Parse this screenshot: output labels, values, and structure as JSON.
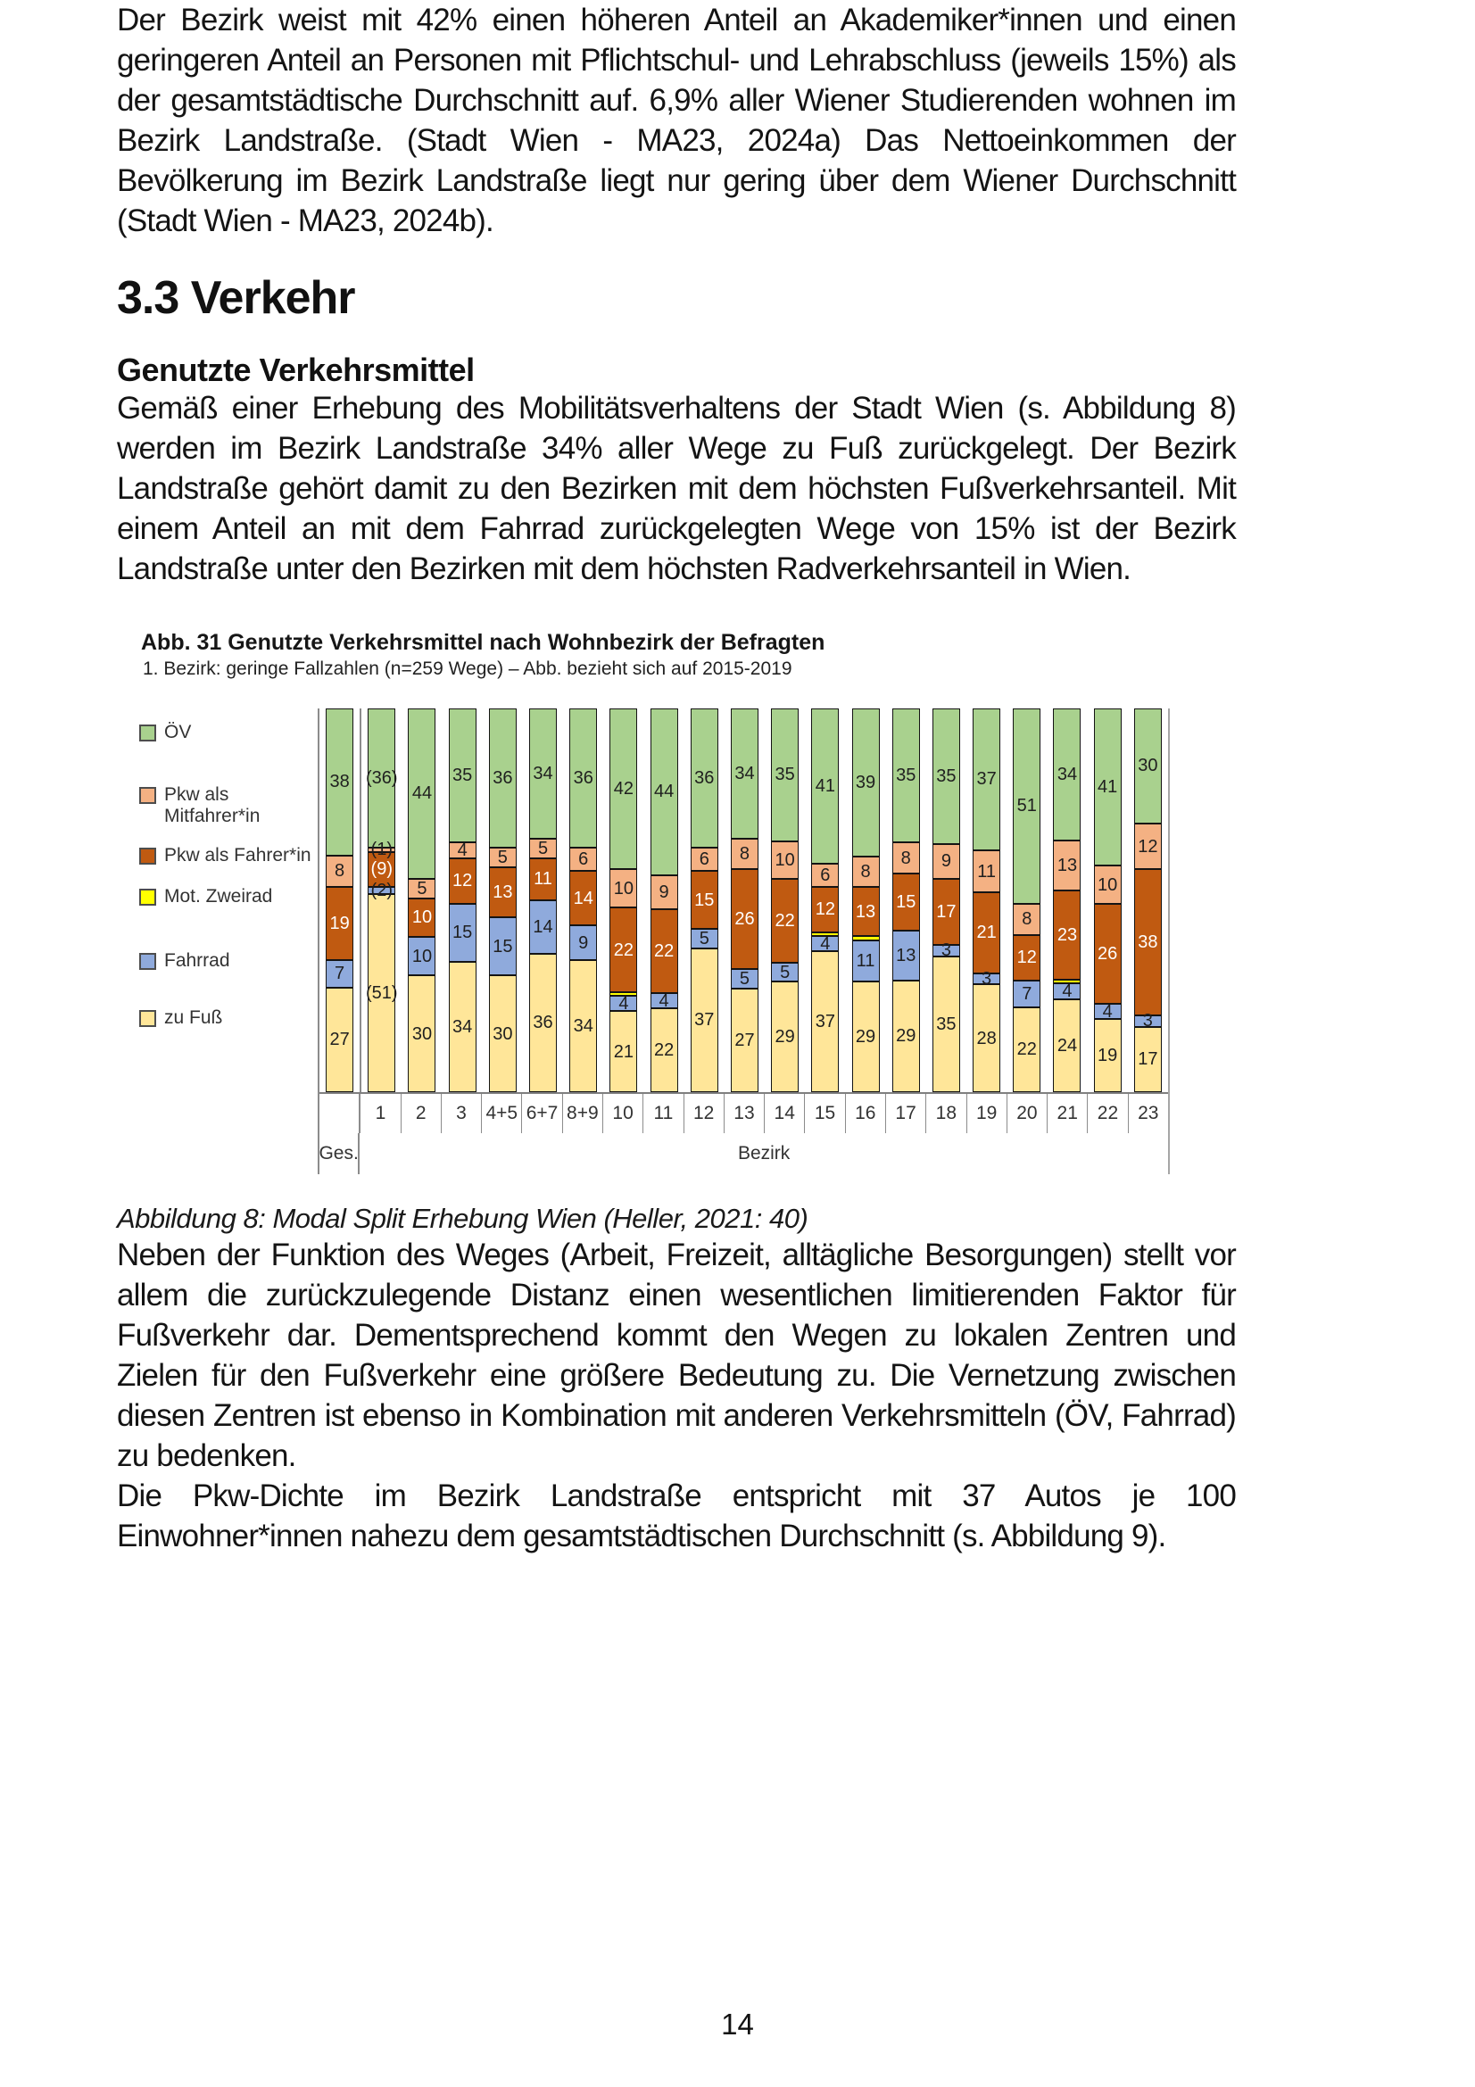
{
  "headings": {
    "section": "3.3 Verkehr",
    "subsection": "Genutzte Verkehrsmittel"
  },
  "paragraphs": {
    "p1": "Der Bezirk weist mit 42% einen höheren Anteil an Akademiker*innen und einen geringeren Anteil an Personen mit Pflichtschul- und Lehrabschluss (jeweils 15%) als der gesamtstädtische Durchschnitt auf. 6,9% aller Wiener Studierenden wohnen im Bezirk Landstraße. (Stadt Wien - MA23, 2024a) Das Nettoeinkommen der Bevölkerung im Bezirk Landstraße liegt nur gering über dem Wiener Durchschnitt (Stadt Wien - MA23, 2024b).",
    "p2": "Gemäß einer Erhebung des Mobilitätsverhaltens der Stadt Wien (s. Abbildung 8) werden im Bezirk Landstraße 34% aller Wege zu Fuß zurückgelegt. Der Bezirk Landstraße gehört damit zu den Bezirken mit dem höchsten Fußverkehrsanteil. Mit einem Anteil an mit dem Fahrrad zurückgelegten Wege von 15% ist der Bezirk Landstraße unter den Bezirken mit dem höchsten Radverkehrsanteil in Wien.",
    "p3": "Neben der Funktion des Weges (Arbeit, Freizeit, alltägliche Besorgungen) stellt vor allem die zurückzulegende Distanz einen wesentlichen limitierenden Faktor für Fußverkehr dar. Dementsprechend kommt den Wegen zu lokalen Zentren und Zielen für den Fußverkehr eine größere Bedeutung zu. Die Vernetzung zwischen diesen Zentren ist ebenso in Kombination mit anderen Verkehrsmitteln (ÖV, Fahrrad) zu bedenken.",
    "p4": "Die Pkw-Dichte im Bezirk Landstraße entspricht mit 37 Autos je 100 Einwohner*innen nahezu dem gesamtstädtischen Durchschnitt (s. Abbildung 9)."
  },
  "figure_caption": "Abbildung 8: Modal Split Erhebung Wien (Heller, 2021: 40)",
  "page_number": "14",
  "chart_data": {
    "type": "bar",
    "stacked": true,
    "normalized_percent": true,
    "title": "Abb. 31 Genutzte Verkehrsmittel nach Wohnbezirk der Befragten",
    "subtitle": "1. Bezirk: geringe Fallzahlen (n=259 Wege) – Abb. bezieht sich auf 2015-2019",
    "xlabel": "Bezirk",
    "group_labels": [
      "Ges.",
      "Bezirk"
    ],
    "legend_position": "left",
    "legend": [
      {
        "label": "ÖV",
        "color": "#a9d18e"
      },
      {
        "label": "Pkw als Mitfahrer*in",
        "color": "#f4b183"
      },
      {
        "label": "Pkw als Fahrer*in",
        "color": "#c05a11"
      },
      {
        "label": "Mot. Zweirad",
        "color": "#ffff00"
      },
      {
        "label": "Fahrrad",
        "color": "#8faadc"
      },
      {
        "label": "zu Fuß",
        "color": "#ffe699"
      }
    ],
    "series": [
      {
        "name": "zu Fuß",
        "key": "zu-fuss",
        "color": "#ffe699",
        "label_color": "#1f1f1f"
      },
      {
        "name": "Fahrrad",
        "key": "fahrrad",
        "color": "#8faadc",
        "label_color": "#1f1f1f"
      },
      {
        "name": "Mot. Zweirad",
        "key": "mot-zweirad",
        "color": "#ffff00",
        "label_color": "#1f1f1f"
      },
      {
        "name": "Pkw als Fahrer*in",
        "key": "pkw-fahrer",
        "color": "#c05a11",
        "label_color": "#ffffff"
      },
      {
        "name": "Pkw als Mitfahrer*in",
        "key": "pkw-mitfahrer",
        "color": "#f4b183",
        "label_color": "#1f1f1f"
      },
      {
        "name": "ÖV",
        "key": "oev",
        "color": "#a9d18e",
        "label_color": "#1f1f1f"
      }
    ],
    "series_order": "bottom-to-top",
    "categories": [
      "Ges.",
      "1",
      "2",
      "3",
      "4+5",
      "6+7",
      "8+9",
      "10",
      "11",
      "12",
      "13",
      "14",
      "15",
      "16",
      "17",
      "18",
      "19",
      "20",
      "21",
      "22",
      "23"
    ],
    "bars": [
      {
        "category": "Ges.",
        "values": [
          27,
          7,
          0,
          19,
          8,
          38
        ],
        "labels": [
          "27",
          "7",
          "",
          "19",
          "8",
          "38"
        ]
      },
      {
        "category": "1",
        "values": [
          51,
          2,
          0,
          9,
          1,
          36
        ],
        "labels": [
          "(51)",
          "(2)",
          "",
          "(9)",
          "(1)",
          "(36)"
        ]
      },
      {
        "category": "2",
        "values": [
          30,
          10,
          0,
          10,
          5,
          44
        ],
        "labels": [
          "30",
          "10",
          "",
          "10",
          "5",
          "44"
        ]
      },
      {
        "category": "3",
        "values": [
          34,
          15,
          0,
          12,
          4,
          35
        ],
        "labels": [
          "34",
          "15",
          "",
          "12",
          "4",
          "35"
        ]
      },
      {
        "category": "4+5",
        "values": [
          30,
          15,
          0,
          13,
          5,
          36
        ],
        "labels": [
          "30",
          "15",
          "",
          "13",
          "5",
          "36"
        ]
      },
      {
        "category": "6+7",
        "values": [
          36,
          14,
          0,
          11,
          5,
          34
        ],
        "labels": [
          "36",
          "14",
          "",
          "11",
          "5",
          "34"
        ]
      },
      {
        "category": "8+9",
        "values": [
          34,
          9,
          0,
          14,
          6,
          36
        ],
        "labels": [
          "34",
          "9",
          "",
          "14",
          "6",
          "36"
        ]
      },
      {
        "category": "10",
        "values": [
          21,
          4,
          1,
          22,
          10,
          42
        ],
        "labels": [
          "21",
          "4",
          "",
          "22",
          "10",
          "42"
        ]
      },
      {
        "category": "11",
        "values": [
          22,
          4,
          0,
          22,
          9,
          44
        ],
        "labels": [
          "22",
          "4",
          "",
          "22",
          "9",
          "44"
        ]
      },
      {
        "category": "12",
        "values": [
          37,
          5,
          0,
          15,
          6,
          36
        ],
        "labels": [
          "37",
          "5",
          "",
          "15",
          "6",
          "36"
        ]
      },
      {
        "category": "13",
        "values": [
          27,
          5,
          0,
          26,
          8,
          34
        ],
        "labels": [
          "27",
          "5",
          "",
          "26",
          "8",
          "34"
        ]
      },
      {
        "category": "14",
        "values": [
          29,
          5,
          0,
          22,
          10,
          35
        ],
        "labels": [
          "29",
          "5",
          "",
          "22",
          "10",
          "35"
        ]
      },
      {
        "category": "15",
        "values": [
          37,
          4,
          1,
          12,
          6,
          41
        ],
        "labels": [
          "37",
          "4",
          "",
          "12",
          "6",
          "41"
        ]
      },
      {
        "category": "16",
        "values": [
          29,
          11,
          1,
          13,
          8,
          39
        ],
        "labels": [
          "29",
          "11",
          "",
          "13",
          "8",
          "39"
        ]
      },
      {
        "category": "17",
        "values": [
          29,
          13,
          0,
          15,
          8,
          35
        ],
        "labels": [
          "29",
          "13",
          "",
          "15",
          "8",
          "35"
        ]
      },
      {
        "category": "18",
        "values": [
          35,
          3,
          0,
          17,
          9,
          35
        ],
        "labels": [
          "35",
          "3",
          "",
          "17",
          "9",
          "35"
        ]
      },
      {
        "category": "19",
        "values": [
          28,
          3,
          0,
          21,
          11,
          37
        ],
        "labels": [
          "28",
          "3",
          "",
          "21",
          "11",
          "37"
        ]
      },
      {
        "category": "20",
        "values": [
          22,
          7,
          0,
          12,
          8,
          51
        ],
        "labels": [
          "22",
          "7",
          "",
          "12",
          "8",
          "51"
        ]
      },
      {
        "category": "21",
        "values": [
          24,
          4,
          1,
          23,
          13,
          34
        ],
        "labels": [
          "24",
          "4",
          "",
          "23",
          "13",
          "34"
        ]
      },
      {
        "category": "22",
        "values": [
          19,
          4,
          0,
          26,
          10,
          41
        ],
        "labels": [
          "19",
          "4",
          "",
          "26",
          "10",
          "41"
        ]
      },
      {
        "category": "23",
        "values": [
          17,
          3,
          0,
          38,
          12,
          30
        ],
        "labels": [
          "17",
          "3",
          "",
          "38",
          "12",
          "30"
        ]
      }
    ]
  }
}
